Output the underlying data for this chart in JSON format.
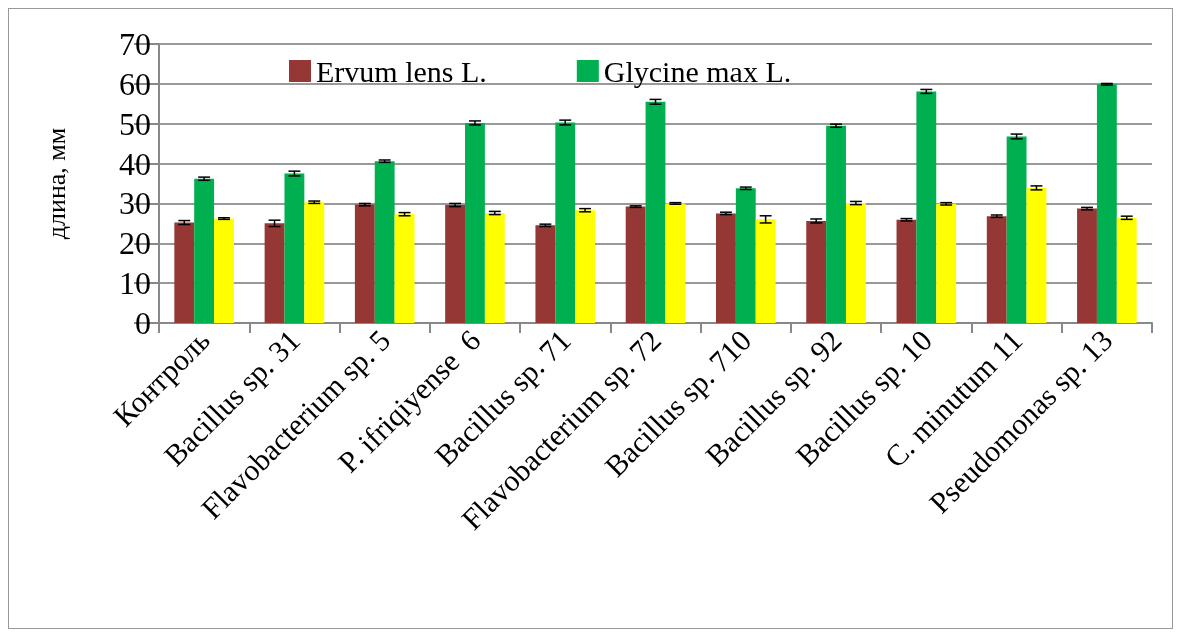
{
  "chart_data": {
    "type": "bar",
    "ylabel": "длина, мм",
    "categories": [
      "Контроль",
      "Bacillus sp. 31",
      "Flavobacterium sp. 5",
      "P. ifriqiyense  6",
      "Bacillus sp. 71",
      "Flavobacterium sp. 72",
      "Bacillus sp. 710",
      "Bacillus sp. 92",
      "Bacillus sp. 10",
      "C. minutum 11",
      "Pseudomonas sp. 13"
    ],
    "series": [
      {
        "name": "Ervum lens L.",
        "color": "#953735",
        "values": [
          25.2,
          25.0,
          29.7,
          29.6,
          24.5,
          29.2,
          27.5,
          25.6,
          25.9,
          26.8,
          28.7
        ],
        "errors": [
          0.5,
          0.8,
          0.3,
          0.4,
          0.3,
          0.2,
          0.3,
          0.5,
          0.3,
          0.3,
          0.3
        ]
      },
      {
        "name": "Glycine max L.",
        "color": "#00b050",
        "values": [
          36.2,
          37.5,
          40.6,
          50.2,
          50.3,
          55.5,
          33.8,
          49.5,
          58.1,
          46.8,
          59.9
        ],
        "errors": [
          0.4,
          0.6,
          0.3,
          0.5,
          0.6,
          0.6,
          0.3,
          0.4,
          0.5,
          0.6,
          0.2
        ]
      },
      {
        "color": "#ffff00",
        "values": [
          26.2,
          30.3,
          27.3,
          27.6,
          28.3,
          30.0,
          26.0,
          30.1,
          29.9,
          33.9,
          26.4
        ],
        "errors": [
          0.2,
          0.3,
          0.4,
          0.4,
          0.4,
          0.2,
          0.9,
          0.4,
          0.3,
          0.5,
          0.4
        ]
      }
    ],
    "ylim": [
      0,
      70
    ],
    "yticks": [
      0,
      10,
      20,
      30,
      40,
      50,
      60,
      70
    ],
    "grid": "y",
    "legend": "top"
  }
}
